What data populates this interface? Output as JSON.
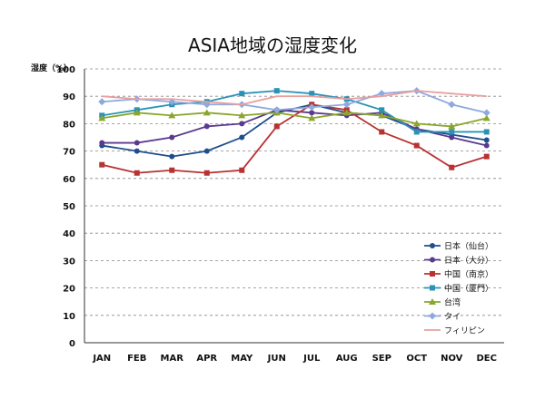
{
  "chart_data": {
    "type": "line",
    "title": "ASIA地域の湿度変化",
    "ylabel": "湿度（%）",
    "xlabel": "",
    "categories": [
      "JAN",
      "FEB",
      "MAR",
      "APR",
      "MAY",
      "JUN",
      "JUL",
      "AUG",
      "SEP",
      "OCT",
      "NOV",
      "DEC"
    ],
    "ylim": [
      0,
      100
    ],
    "yticks": [
      "0",
      "10",
      "20",
      "30",
      "40",
      "50",
      "60",
      "70",
      "80",
      "90",
      "100"
    ],
    "grid": "horizontal dashed",
    "legend_position": "right",
    "series": [
      {
        "name": "日本（仙台）",
        "color": "#1f4e8c",
        "marker": "circle",
        "values": [
          72,
          70,
          68,
          70,
          75,
          84,
          87,
          84,
          83,
          78,
          76,
          74
        ]
      },
      {
        "name": "日本（大分）",
        "color": "#5b3a8e",
        "marker": "circle",
        "values": [
          73,
          73,
          75,
          79,
          80,
          85,
          84,
          83,
          84,
          78,
          75,
          72
        ]
      },
      {
        "name": "中国（南京）",
        "color": "#b83232",
        "marker": "square",
        "values": [
          65,
          62,
          63,
          62,
          63,
          79,
          87,
          85,
          77,
          72,
          64,
          68
        ]
      },
      {
        "name": "中国（厦門）",
        "color": "#2a93b5",
        "marker": "square",
        "values": [
          83,
          85,
          87,
          88,
          91,
          92,
          91,
          89,
          85,
          77,
          77,
          77
        ]
      },
      {
        "name": "台湾",
        "color": "#8aa62b",
        "marker": "triangle",
        "values": [
          82,
          84,
          83,
          84,
          83,
          84,
          82,
          84,
          83,
          80,
          79,
          82
        ]
      },
      {
        "name": "タイ",
        "color": "#8fa9de",
        "marker": "diamond",
        "values": [
          88,
          89,
          88,
          87,
          87,
          85,
          86,
          87,
          91,
          92,
          87,
          84
        ]
      },
      {
        "name": "フィリピン",
        "color": "#e8a0a0",
        "marker": "none",
        "values": [
          90,
          89,
          89,
          88,
          87,
          90,
          90,
          89,
          90,
          92,
          91,
          90
        ]
      }
    ]
  }
}
